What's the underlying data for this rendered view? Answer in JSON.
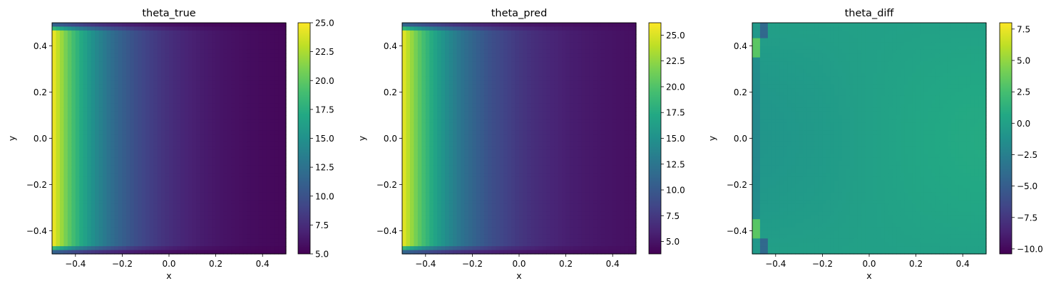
{
  "colormap": "viridis",
  "chart_data": [
    {
      "type": "heatmap",
      "title": "theta_true",
      "xlabel": "x",
      "ylabel": "y",
      "xlim": [
        -0.5,
        0.5
      ],
      "ylim": [
        -0.5,
        0.5
      ],
      "xticks": [
        -0.4,
        -0.2,
        0.0,
        0.2,
        0.4
      ],
      "xticklabels": [
        "−0.4",
        "−0.2",
        "0.0",
        "0.2",
        "0.4"
      ],
      "yticks": [
        -0.4,
        -0.2,
        0.0,
        0.2,
        0.4
      ],
      "yticklabels": [
        "−0.4",
        "−0.2",
        "0.0",
        "0.2",
        "0.4"
      ],
      "colorbar": {
        "range": [
          5,
          25
        ],
        "ticks": [
          5,
          7.5,
          10,
          12.5,
          15,
          17.5,
          20,
          22.5,
          25
        ],
        "ticklabels": [
          "5.0",
          "7.5",
          "10.0",
          "12.5",
          "15.0",
          "17.5",
          "20.0",
          "22.5",
          "25.0"
        ]
      },
      "field": "true"
    },
    {
      "type": "heatmap",
      "title": "theta_pred",
      "xlabel": "x",
      "ylabel": "y",
      "xlim": [
        -0.5,
        0.5
      ],
      "ylim": [
        -0.5,
        0.5
      ],
      "xticks": [
        -0.4,
        -0.2,
        0.0,
        0.2,
        0.4
      ],
      "xticklabels": [
        "−0.4",
        "−0.2",
        "0.0",
        "0.2",
        "0.4"
      ],
      "yticks": [
        -0.4,
        -0.2,
        0.0,
        0.2,
        0.4
      ],
      "yticklabels": [
        "−0.4",
        "−0.2",
        "0.0",
        "0.2",
        "0.4"
      ],
      "colorbar": {
        "range": [
          3.8,
          26.2
        ],
        "ticks": [
          5,
          7.5,
          10,
          12.5,
          15,
          17.5,
          20,
          22.5,
          25
        ],
        "ticklabels": [
          "5.0",
          "7.5",
          "10.0",
          "12.5",
          "15.0",
          "17.5",
          "20.0",
          "22.5",
          "25.0"
        ]
      },
      "field": "pred"
    },
    {
      "type": "heatmap",
      "title": "theta_diff",
      "xlabel": "x",
      "ylabel": "y",
      "xlim": [
        -0.5,
        0.5
      ],
      "ylim": [
        -0.5,
        0.5
      ],
      "xticks": [
        -0.4,
        -0.2,
        0.0,
        0.2,
        0.4
      ],
      "xticklabels": [
        "−0.4",
        "−0.2",
        "0.0",
        "0.2",
        "0.4"
      ],
      "yticks": [
        -0.4,
        -0.2,
        0.0,
        0.2,
        0.4
      ],
      "yticklabels": [
        "−0.4",
        "−0.2",
        "0.0",
        "0.2",
        "0.4"
      ],
      "colorbar": {
        "range": [
          -10.4,
          8.0
        ],
        "ticks": [
          -10,
          -7.5,
          -5,
          -2.5,
          0,
          2.5,
          5,
          7.5
        ],
        "ticklabels": [
          "−10.0",
          "−7.5",
          "−5.0",
          "−2.5",
          "0.0",
          "2.5",
          "5.0",
          "7.5"
        ]
      },
      "field": "diff"
    }
  ]
}
